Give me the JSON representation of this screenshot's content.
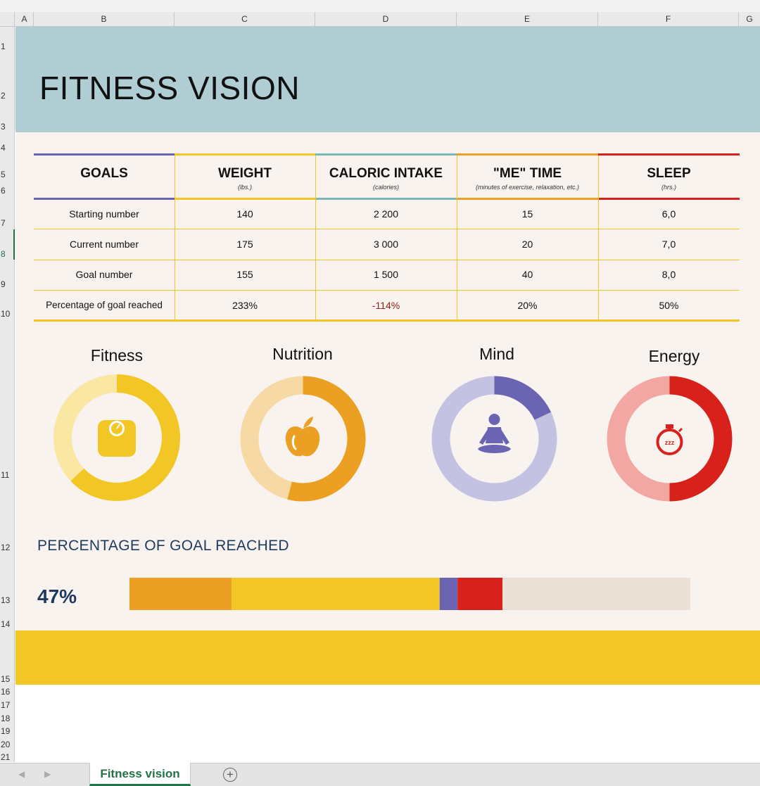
{
  "spreadsheet": {
    "columns": [
      "A",
      "B",
      "C",
      "D",
      "E",
      "F",
      "G"
    ],
    "rows": [
      "1",
      "2",
      "3",
      "4",
      "5",
      "6",
      "7",
      "8",
      "9",
      "10",
      "11",
      "12",
      "13",
      "14",
      "15",
      "16",
      "17",
      "18",
      "19",
      "20",
      "21"
    ],
    "selected_row": "8",
    "active_sheet_tab": "Fitness vision"
  },
  "title": "FITNESS VISION",
  "table": {
    "headers": [
      {
        "label": "GOALS",
        "sub": ""
      },
      {
        "label": "WEIGHT",
        "sub": "(lbs.)"
      },
      {
        "label": "CALORIC INTAKE",
        "sub": "(calories)"
      },
      {
        "label": "\"ME\" TIME",
        "sub": "(minutes of exercise, relaxation, etc.)"
      },
      {
        "label": "SLEEP",
        "sub": "(hrs.)"
      }
    ],
    "rows": [
      {
        "label": "Starting number",
        "values": [
          "140",
          "2 200",
          "15",
          "6,0"
        ]
      },
      {
        "label": "Current number",
        "values": [
          "175",
          "3 000",
          "20",
          "7,0"
        ]
      },
      {
        "label": "Goal number",
        "values": [
          "155",
          "1 500",
          "40",
          "8,0"
        ]
      },
      {
        "label": "Percentage of goal reached",
        "values": [
          "233%",
          "-114%",
          "20%",
          "50%"
        ]
      }
    ],
    "header_colors": [
      "#6a64b2",
      "#f2c725",
      "#79b7bb",
      "#eba023",
      "#d9211b"
    ]
  },
  "rings": [
    {
      "label": "Fitness",
      "icon": "scale-icon",
      "fill": 0.63,
      "color": "#f2c725",
      "track": "#fae7a3"
    },
    {
      "label": "Nutrition",
      "icon": "apple-icon",
      "fill": 0.54,
      "color": "#eba023",
      "track": "#f7d9a6"
    },
    {
      "label": "Mind",
      "icon": "meditation-icon",
      "fill": 0.18,
      "color": "#6a64b2",
      "track": "#c4c2e2"
    },
    {
      "label": "Energy",
      "icon": "stopwatch-icon",
      "fill": 0.5,
      "color": "#d9211b",
      "track": "#f3a7a2"
    }
  ],
  "progress": {
    "heading": "PERCENTAGE OF GOAL REACHED",
    "value_label": "47%",
    "segments": [
      {
        "name": "nutrition",
        "fraction": 0.182,
        "color": "#eba023"
      },
      {
        "name": "fitness",
        "fraction": 0.371,
        "color": "#f2c725"
      },
      {
        "name": "mind",
        "fraction": 0.032,
        "color": "#6a64b2"
      },
      {
        "name": "energy",
        "fraction": 0.08,
        "color": "#d9211b"
      }
    ],
    "remainder_color": "#ebe0d5"
  }
}
